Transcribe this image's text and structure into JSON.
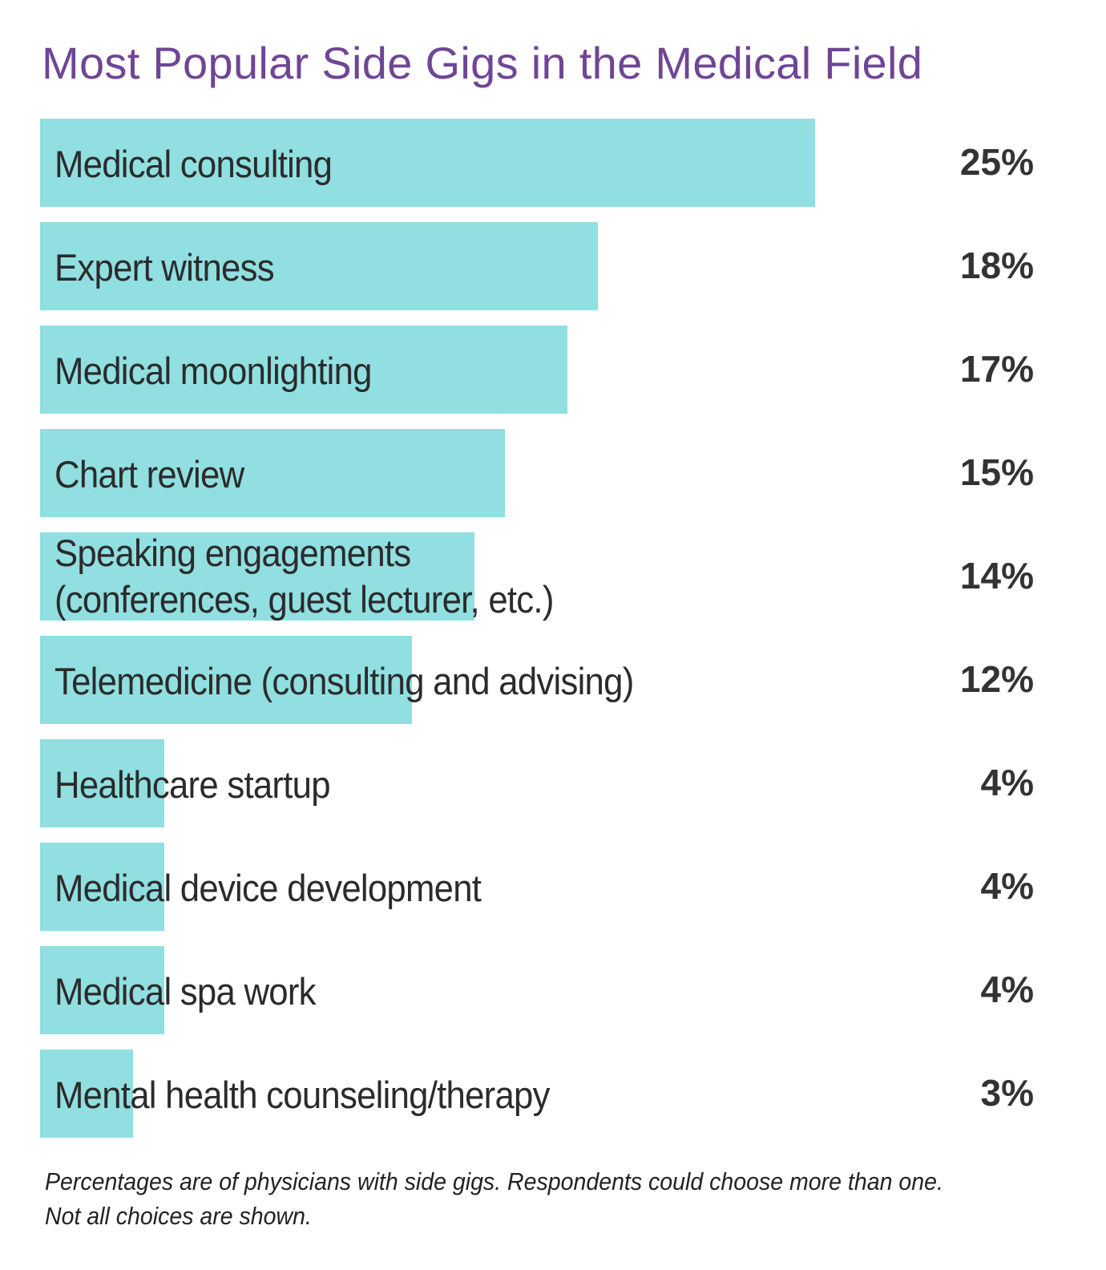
{
  "chart_data": {
    "type": "bar",
    "orientation": "horizontal",
    "title": "Most Popular Side Gigs in the Medical Field",
    "categories": [
      "Medical consulting",
      "Expert witness",
      "Medical moonlighting",
      "Chart review",
      "Speaking engagements\n(conferences, guest lecturer, etc.)",
      "Telemedicine (consulting and advising)",
      "Healthcare startup",
      "Medical device development",
      "Medical spa work",
      "Mental health counseling/therapy"
    ],
    "values": [
      25,
      18,
      17,
      15,
      14,
      12,
      4,
      4,
      4,
      3
    ],
    "value_labels": [
      "25%",
      "18%",
      "17%",
      "15%",
      "14%",
      "12%",
      "4%",
      "4%",
      "4%",
      "3%"
    ],
    "unit": "%",
    "xlim": [
      0,
      25
    ],
    "grid": false,
    "footnote": [
      "Percentages are of physicians with side gigs. Respondents could choose more than one.",
      "Not all choices are shown."
    ],
    "colors": {
      "bar": "#91dfe0",
      "title": "#6f4596",
      "text": "#2b2b2b"
    }
  }
}
